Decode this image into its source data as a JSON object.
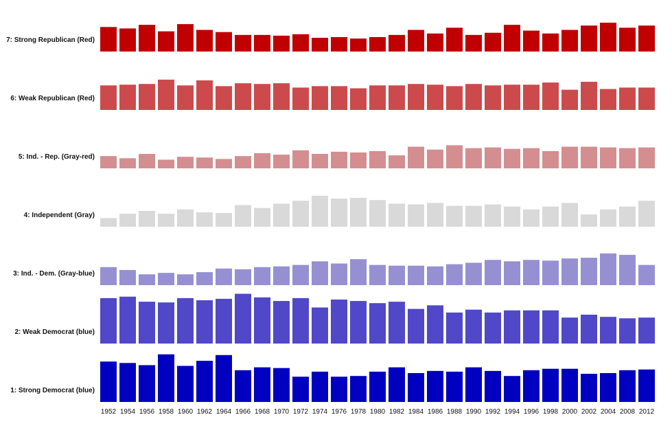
{
  "chart_data": {
    "type": "bar",
    "layout": "small-multiples",
    "categories": [
      "1952",
      "1954",
      "1956",
      "1958",
      "1960",
      "1962",
      "1964",
      "1966",
      "1968",
      "1970",
      "1972",
      "1974",
      "1976",
      "1978",
      "1980",
      "1982",
      "1984",
      "1986",
      "1988",
      "1990",
      "1992",
      "1994",
      "1996",
      "1998",
      "2000",
      "2002",
      "2004",
      "2008",
      "2012"
    ],
    "series": [
      {
        "name": "7: Strong Republican (Red)",
        "color": "#c00000",
        "values": [
          34,
          32,
          37,
          28,
          38,
          30,
          27,
          23,
          23,
          22,
          24,
          19,
          20,
          18,
          20,
          23,
          30,
          25,
          33,
          23,
          26,
          37,
          29,
          25,
          30,
          36,
          40,
          33,
          36
        ]
      },
      {
        "name": "6: Weak Republican (Red)",
        "color": "#cc4a4c",
        "values": [
          34,
          35,
          36,
          42,
          34,
          41,
          33,
          37,
          36,
          37,
          31,
          33,
          33,
          30,
          34,
          34,
          36,
          35,
          33,
          36,
          34,
          35,
          35,
          38,
          28,
          39,
          29,
          31,
          31
        ]
      },
      {
        "name": "5: Ind. - Rep. (Gray-red)",
        "color": "#d48e90",
        "values": [
          17,
          14,
          20,
          12,
          16,
          15,
          13,
          17,
          21,
          19,
          25,
          20,
          23,
          22,
          24,
          18,
          30,
          26,
          32,
          28,
          29,
          27,
          28,
          24,
          30,
          30,
          29,
          28,
          29
        ]
      },
      {
        "name": "4: Independent (Gray)",
        "color": "#d9d9d9",
        "values": [
          12,
          18,
          22,
          18,
          24,
          20,
          19,
          30,
          26,
          32,
          36,
          43,
          39,
          40,
          37,
          32,
          31,
          33,
          29,
          29,
          31,
          28,
          24,
          28,
          33,
          17,
          24,
          28,
          36
        ]
      },
      {
        "name": "3: Ind. - Dem. (Gray-blue)",
        "color": "#9690d3",
        "values": [
          25,
          21,
          15,
          17,
          15,
          18,
          23,
          22,
          25,
          26,
          28,
          33,
          30,
          36,
          28,
          27,
          27,
          26,
          29,
          31,
          35,
          33,
          35,
          34,
          37,
          38,
          44,
          42,
          28
        ]
      },
      {
        "name": "2: Weak Democrat (blue)",
        "color": "#5048c8",
        "values": [
          63,
          65,
          58,
          57,
          63,
          60,
          62,
          69,
          64,
          59,
          63,
          50,
          61,
          59,
          56,
          58,
          48,
          53,
          43,
          47,
          43,
          46,
          46,
          46,
          36,
          40,
          37,
          35,
          36
        ]
      },
      {
        "name": "1: Strong Democrat (blue)",
        "color": "#0000c0",
        "values": [
          56,
          54,
          51,
          66,
          50,
          57,
          65,
          44,
          48,
          47,
          35,
          42,
          35,
          36,
          42,
          48,
          40,
          43,
          42,
          48,
          43,
          36,
          44,
          46,
          46,
          39,
          40,
          44,
          45
        ]
      }
    ],
    "xlabel": "",
    "ylabel": "",
    "grid": false,
    "legend": "none"
  }
}
